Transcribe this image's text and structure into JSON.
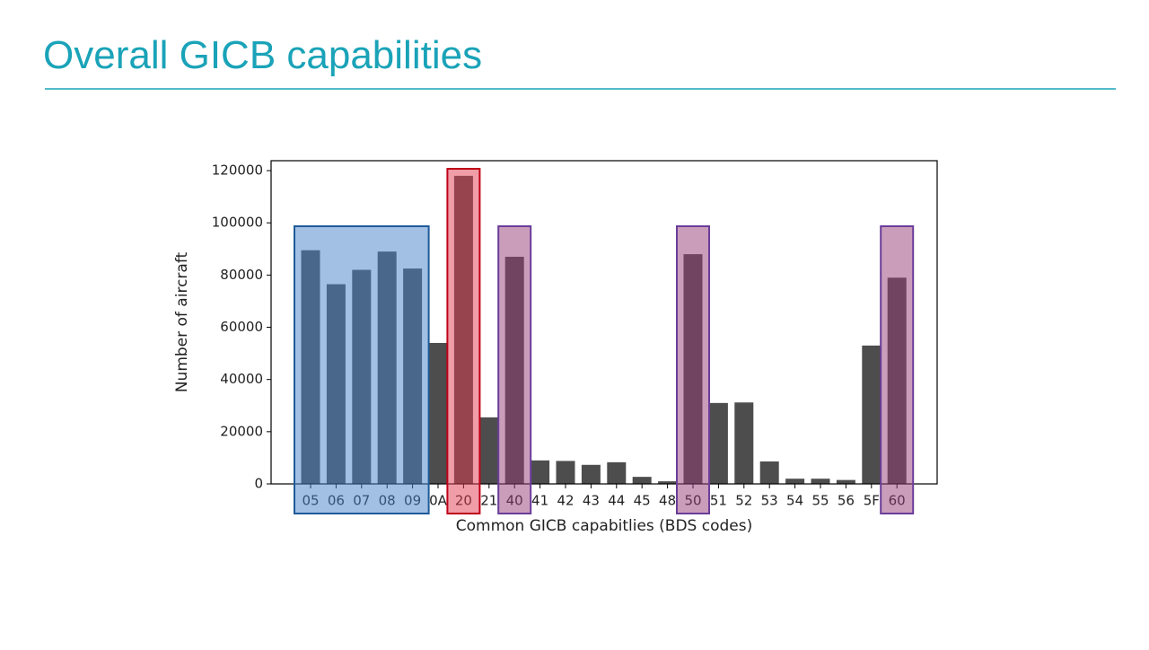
{
  "chart_data": {
    "type": "bar",
    "title": "Overall GICB capabilities",
    "x_label": "Common GICB capabitlies (BDS codes)",
    "y_label": "Number of aircraft",
    "categories": [
      "05",
      "06",
      "07",
      "08",
      "09",
      "0A",
      "20",
      "21",
      "40",
      "41",
      "42",
      "43",
      "44",
      "45",
      "48",
      "50",
      "51",
      "52",
      "53",
      "54",
      "55",
      "56",
      "5F",
      "60"
    ],
    "values": [
      89500,
      76500,
      82000,
      89000,
      82500,
      54000,
      118000,
      25500,
      87000,
      9000,
      8800,
      7300,
      8300,
      2700,
      1000,
      88000,
      31000,
      31200,
      8600,
      2000,
      2000,
      1500,
      53000,
      79000
    ],
    "color": "#4d4d4d",
    "ylim": [
      0,
      123800
    ],
    "yticks": [
      0,
      20000,
      40000,
      60000,
      80000,
      100000,
      120000
    ],
    "grid": false
  }
}
